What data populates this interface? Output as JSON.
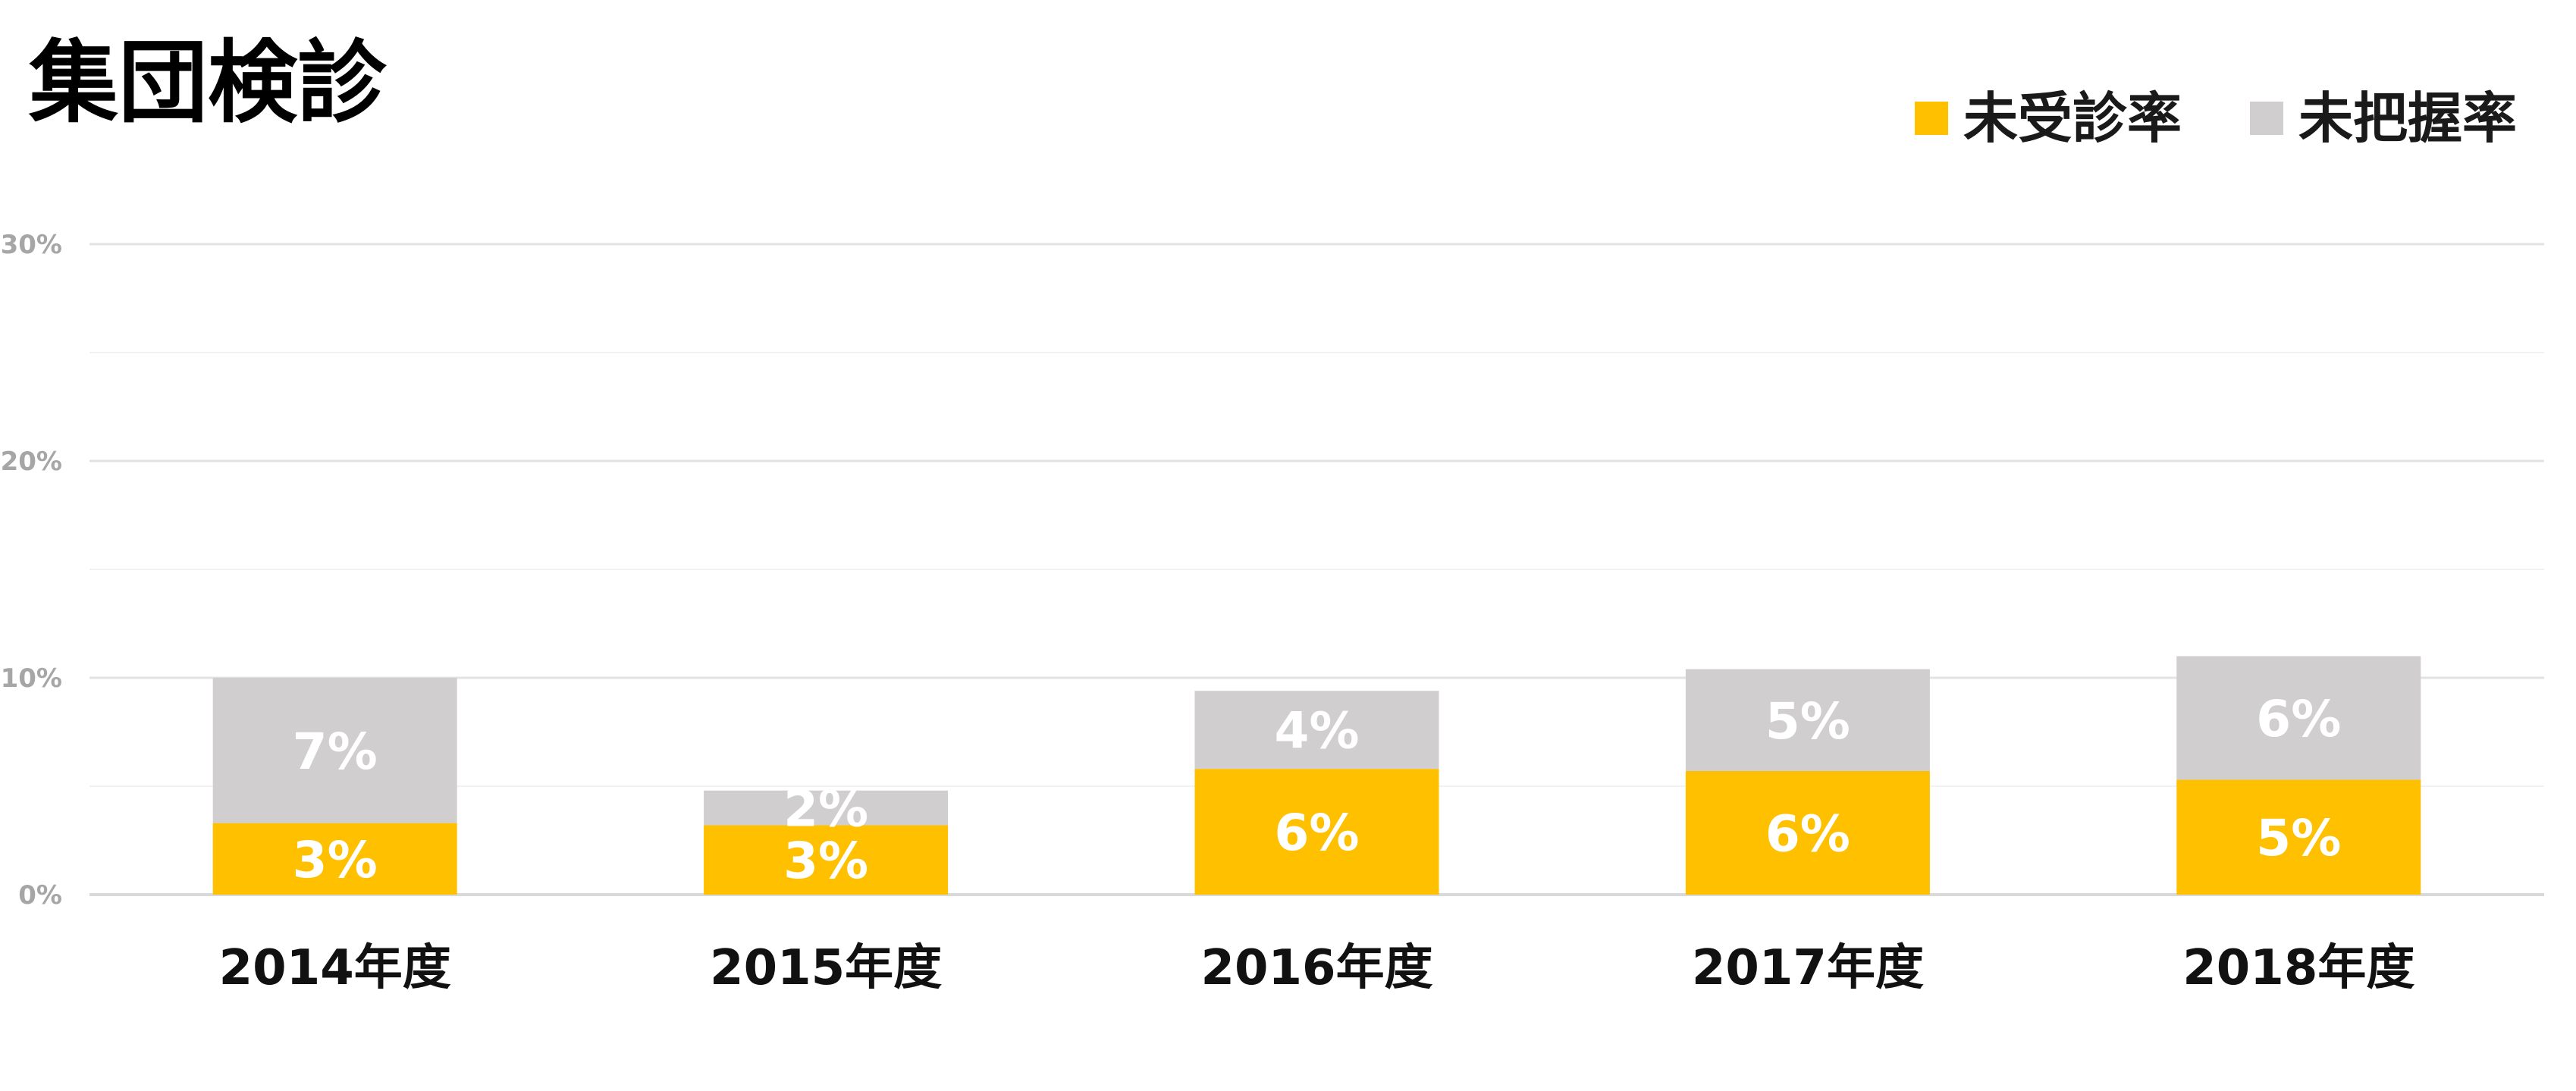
{
  "chart_data": {
    "type": "bar",
    "stacked": true,
    "title": "集団検診",
    "categories": [
      "2014年度",
      "2015年度",
      "2016年度",
      "2017年度",
      "2018年度"
    ],
    "series": [
      {
        "name": "未受診率",
        "values": [
          3.3,
          3.2,
          5.8,
          5.7,
          5.3
        ],
        "labels": [
          "3%",
          "3%",
          "6%",
          "6%",
          "5%"
        ],
        "color": "#FFC000"
      },
      {
        "name": "未把握率",
        "values": [
          6.7,
          1.6,
          3.6,
          4.7,
          5.7
        ],
        "labels": [
          "7%",
          "2%",
          "4%",
          "5%",
          "6%"
        ],
        "color": "#D0CECE"
      }
    ],
    "ylim": [
      0,
      30
    ],
    "yticks": [
      0,
      10,
      20,
      30
    ],
    "ytick_labels": [
      "0%",
      "10%",
      "20%",
      "30%"
    ],
    "minor_gridlines": [
      5,
      15,
      25
    ],
    "grid": true,
    "legend_position": "top-right"
  }
}
